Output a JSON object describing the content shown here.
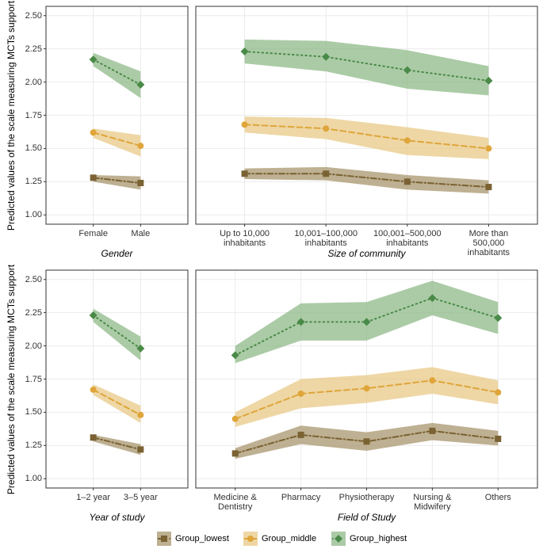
{
  "chart_data": [
    {
      "type": "line",
      "x_label": "Gender",
      "y_label": "Predicted values of the scale measuring MCTs support",
      "categories": [
        "Female",
        "Male"
      ],
      "ylim": [
        0.93,
        2.57
      ],
      "yticks": [
        {
          "value": 1,
          "label": "1.00"
        },
        {
          "value": 1.25,
          "label": "1.25"
        },
        {
          "value": 1.5,
          "label": "1.50"
        },
        {
          "value": 1.75,
          "label": "1.75"
        },
        {
          "value": 2,
          "label": "2.00"
        },
        {
          "value": 2.25,
          "label": "2.25"
        },
        {
          "value": 2.5,
          "label": "2.50"
        }
      ],
      "series": [
        {
          "name": "Group_lowest",
          "color": "#7a6233",
          "band_color": "#a8956d",
          "linetype": "dotdash",
          "shape": "square",
          "values": [
            1.28,
            1.24
          ],
          "lower": [
            1.25,
            1.19
          ],
          "upper": [
            1.3,
            1.29
          ]
        },
        {
          "name": "Group_middle",
          "color": "#dfa53a",
          "band_color": "#e8c987",
          "linetype": "dashed",
          "shape": "circle",
          "values": [
            1.62,
            1.52
          ],
          "lower": [
            1.58,
            1.44
          ],
          "upper": [
            1.65,
            1.6
          ]
        },
        {
          "name": "Group_highest",
          "color": "#4a8a48",
          "band_color": "#8fb988",
          "linetype": "dotted",
          "shape": "diamond",
          "values": [
            2.17,
            1.98
          ],
          "lower": [
            2.12,
            1.88
          ],
          "upper": [
            2.22,
            2.08
          ]
        }
      ]
    },
    {
      "type": "line",
      "x_label": "Size of community",
      "categories": [
        "Up to 10,000\ninhabitants",
        "10,001–100,000\ninhabitants",
        "100,001–500,000\ninhabitants",
        "More than 500,000\ninhabitants"
      ],
      "ylim": [
        0.93,
        2.57
      ],
      "yticks": [
        1,
        1.25,
        1.5,
        1.75,
        2,
        2.25,
        2.5
      ],
      "series": [
        {
          "name": "Group_lowest",
          "color": "#7a6233",
          "band_color": "#a8956d",
          "linetype": "dotdash",
          "shape": "square",
          "values": [
            1.31,
            1.31,
            1.25,
            1.21
          ],
          "lower": [
            1.27,
            1.26,
            1.19,
            1.16
          ],
          "upper": [
            1.35,
            1.36,
            1.3,
            1.26
          ]
        },
        {
          "name": "Group_middle",
          "color": "#dfa53a",
          "band_color": "#e8c987",
          "linetype": "dashed",
          "shape": "circle",
          "values": [
            1.68,
            1.65,
            1.56,
            1.5
          ],
          "lower": [
            1.62,
            1.57,
            1.45,
            1.42
          ],
          "upper": [
            1.74,
            1.73,
            1.66,
            1.58
          ]
        },
        {
          "name": "Group_highest",
          "color": "#4a8a48",
          "band_color": "#8fb988",
          "linetype": "dotted",
          "shape": "diamond",
          "values": [
            2.23,
            2.19,
            2.09,
            2.01
          ],
          "lower": [
            2.14,
            2.08,
            1.95,
            1.9
          ],
          "upper": [
            2.32,
            2.31,
            2.24,
            2.12
          ]
        }
      ]
    },
    {
      "type": "line",
      "x_label": "Year of study",
      "y_label": "Predicted values of the scale measuring MCTs support",
      "categories": [
        "1–2 year",
        "3–5 year"
      ],
      "ylim": [
        0.93,
        2.57
      ],
      "yticks": [
        {
          "value": 1,
          "label": "1.00"
        },
        {
          "value": 1.25,
          "label": "1.25"
        },
        {
          "value": 1.5,
          "label": "1.50"
        },
        {
          "value": 1.75,
          "label": "1.75"
        },
        {
          "value": 2,
          "label": "2.00"
        },
        {
          "value": 2.25,
          "label": "2.25"
        },
        {
          "value": 2.5,
          "label": "2.50"
        }
      ],
      "series": [
        {
          "name": "Group_lowest",
          "color": "#7a6233",
          "band_color": "#a8956d",
          "linetype": "dotdash",
          "shape": "square",
          "values": [
            1.31,
            1.22
          ],
          "lower": [
            1.28,
            1.18
          ],
          "upper": [
            1.33,
            1.26
          ]
        },
        {
          "name": "Group_middle",
          "color": "#dfa53a",
          "band_color": "#e8c987",
          "linetype": "dashed",
          "shape": "circle",
          "values": [
            1.67,
            1.48
          ],
          "lower": [
            1.63,
            1.42
          ],
          "upper": [
            1.71,
            1.55
          ]
        },
        {
          "name": "Group_highest",
          "color": "#4a8a48",
          "band_color": "#8fb988",
          "linetype": "dotted",
          "shape": "diamond",
          "values": [
            2.23,
            1.98
          ],
          "lower": [
            2.18,
            1.89
          ],
          "upper": [
            2.28,
            2.07
          ]
        }
      ]
    },
    {
      "type": "line",
      "x_label": "Field of Study",
      "categories": [
        "Medicine &\nDentistry",
        "Pharmacy",
        "Physiotherapy",
        "Nursing &\nMidwifery",
        "Others"
      ],
      "ylim": [
        0.93,
        2.57
      ],
      "yticks": [
        1,
        1.25,
        1.5,
        1.75,
        2,
        2.25,
        2.5
      ],
      "series": [
        {
          "name": "Group_lowest",
          "color": "#7a6233",
          "band_color": "#a8956d",
          "linetype": "dotdash",
          "shape": "square",
          "values": [
            1.19,
            1.33,
            1.28,
            1.36,
            1.3
          ],
          "lower": [
            1.15,
            1.26,
            1.21,
            1.29,
            1.25
          ],
          "upper": [
            1.23,
            1.4,
            1.35,
            1.42,
            1.36
          ]
        },
        {
          "name": "Group_middle",
          "color": "#dfa53a",
          "band_color": "#e8c987",
          "linetype": "dashed",
          "shape": "circle",
          "values": [
            1.45,
            1.64,
            1.68,
            1.74,
            1.65
          ],
          "lower": [
            1.39,
            1.53,
            1.57,
            1.64,
            1.56
          ],
          "upper": [
            1.5,
            1.75,
            1.78,
            1.84,
            1.74
          ]
        },
        {
          "name": "Group_highest",
          "color": "#4a8a48",
          "band_color": "#8fb988",
          "linetype": "dotted",
          "shape": "diamond",
          "values": [
            1.93,
            2.18,
            2.18,
            2.36,
            2.21
          ],
          "lower": [
            1.87,
            2.04,
            2.04,
            2.23,
            2.09
          ],
          "upper": [
            2.0,
            2.32,
            2.33,
            2.49,
            2.33
          ]
        }
      ]
    }
  ]
}
